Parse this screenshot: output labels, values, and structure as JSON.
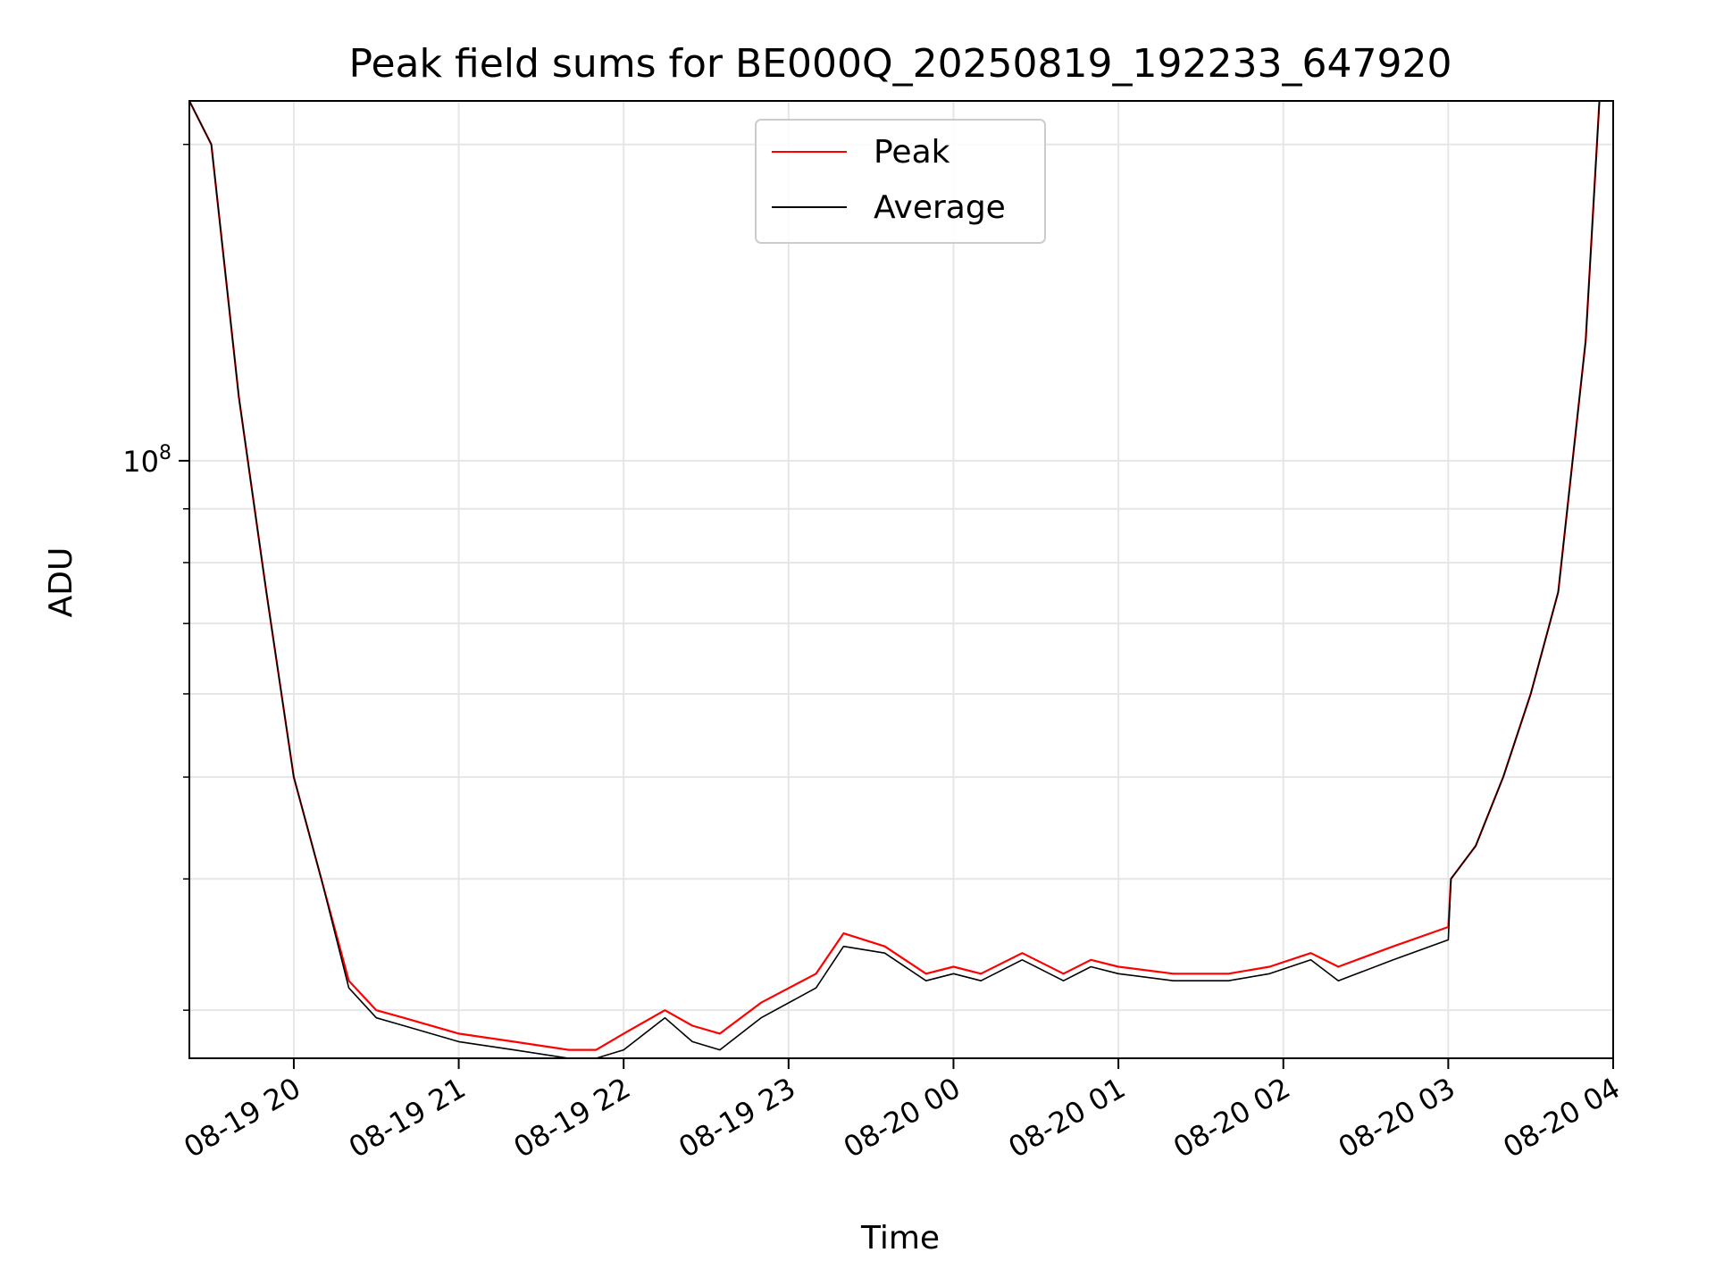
{
  "chart_data": {
    "type": "line",
    "title": "Peak field sums for BE000Q_20250819_192233_647920",
    "xlabel": "Time",
    "ylabel": "ADU",
    "y_scale": "log",
    "ylim": [
      27000000,
      220000000
    ],
    "xlim": [
      "2025-08-19 19:22",
      "2025-08-20 04:00"
    ],
    "x_ticks": [
      "08-19 20",
      "08-19 21",
      "08-19 22",
      "08-19 23",
      "08-20 00",
      "08-20 01",
      "08-20 02",
      "08-20 03",
      "08-20 04"
    ],
    "y_ticks": [
      {
        "value": 100000000,
        "label_base": "10",
        "label_exp": "8"
      }
    ],
    "grid": true,
    "legend_position": "top-center",
    "series": [
      {
        "name": "Peak",
        "color": "#ff0000",
        "x": [
          "2025-08-19 19:22",
          "2025-08-19 19:30",
          "2025-08-19 19:40",
          "2025-08-19 19:50",
          "2025-08-19 20:00",
          "2025-08-19 20:10",
          "2025-08-19 20:20",
          "2025-08-19 20:30",
          "2025-08-19 20:40",
          "2025-08-19 21:00",
          "2025-08-19 21:20",
          "2025-08-19 21:40",
          "2025-08-19 21:50",
          "2025-08-19 22:00",
          "2025-08-19 22:15",
          "2025-08-19 22:25",
          "2025-08-19 22:35",
          "2025-08-19 22:50",
          "2025-08-19 23:10",
          "2025-08-19 23:20",
          "2025-08-19 23:35",
          "2025-08-19 23:50",
          "2025-08-20 00:00",
          "2025-08-20 00:10",
          "2025-08-20 00:25",
          "2025-08-20 00:40",
          "2025-08-20 00:50",
          "2025-08-20 01:00",
          "2025-08-20 01:20",
          "2025-08-20 01:40",
          "2025-08-20 01:55",
          "2025-08-20 02:10",
          "2025-08-20 02:20",
          "2025-08-20 02:40",
          "2025-08-20 03:00",
          "2025-08-20 03:01",
          "2025-08-20 03:10",
          "2025-08-20 03:20",
          "2025-08-20 03:30",
          "2025-08-20 03:40",
          "2025-08-20 03:50",
          "2025-08-20 03:55"
        ],
        "values": [
          220000000,
          200000000,
          115000000,
          75000000,
          50000000,
          40000000,
          32000000,
          30000000,
          29500000,
          28500000,
          28000000,
          27500000,
          27500000,
          28500000,
          30000000,
          29000000,
          28500000,
          30500000,
          32500000,
          35500000,
          34500000,
          32500000,
          33000000,
          32500000,
          34000000,
          32500000,
          33500000,
          33000000,
          32500000,
          32500000,
          33000000,
          34000000,
          33000000,
          34500000,
          36000000,
          40000000,
          43000000,
          50000000,
          60000000,
          75000000,
          130000000,
          220000000
        ]
      },
      {
        "name": "Average",
        "color": "#000000",
        "x": [
          "2025-08-19 19:22",
          "2025-08-19 19:30",
          "2025-08-19 19:40",
          "2025-08-19 19:50",
          "2025-08-19 20:00",
          "2025-08-19 20:10",
          "2025-08-19 20:20",
          "2025-08-19 20:30",
          "2025-08-19 20:40",
          "2025-08-19 21:00",
          "2025-08-19 21:20",
          "2025-08-19 21:40",
          "2025-08-19 21:50",
          "2025-08-19 22:00",
          "2025-08-19 22:15",
          "2025-08-19 22:25",
          "2025-08-19 22:35",
          "2025-08-19 22:50",
          "2025-08-19 23:10",
          "2025-08-19 23:20",
          "2025-08-19 23:35",
          "2025-08-19 23:50",
          "2025-08-20 00:00",
          "2025-08-20 00:10",
          "2025-08-20 00:25",
          "2025-08-20 00:40",
          "2025-08-20 00:50",
          "2025-08-20 01:00",
          "2025-08-20 01:20",
          "2025-08-20 01:40",
          "2025-08-20 01:55",
          "2025-08-20 02:10",
          "2025-08-20 02:20",
          "2025-08-20 02:40",
          "2025-08-20 03:00",
          "2025-08-20 03:01",
          "2025-08-20 03:10",
          "2025-08-20 03:20",
          "2025-08-20 03:30",
          "2025-08-20 03:40",
          "2025-08-20 03:50",
          "2025-08-20 03:55"
        ],
        "values": [
          220000000,
          200000000,
          115000000,
          75000000,
          50000000,
          40000000,
          31500000,
          29500000,
          29000000,
          28000000,
          27500000,
          27000000,
          27000000,
          27500000,
          29500000,
          28000000,
          27500000,
          29500000,
          31500000,
          34500000,
          34000000,
          32000000,
          32500000,
          32000000,
          33500000,
          32000000,
          33000000,
          32500000,
          32000000,
          32000000,
          32500000,
          33500000,
          32000000,
          33500000,
          35000000,
          40000000,
          43000000,
          50000000,
          60000000,
          75000000,
          130000000,
          220000000
        ]
      }
    ]
  }
}
